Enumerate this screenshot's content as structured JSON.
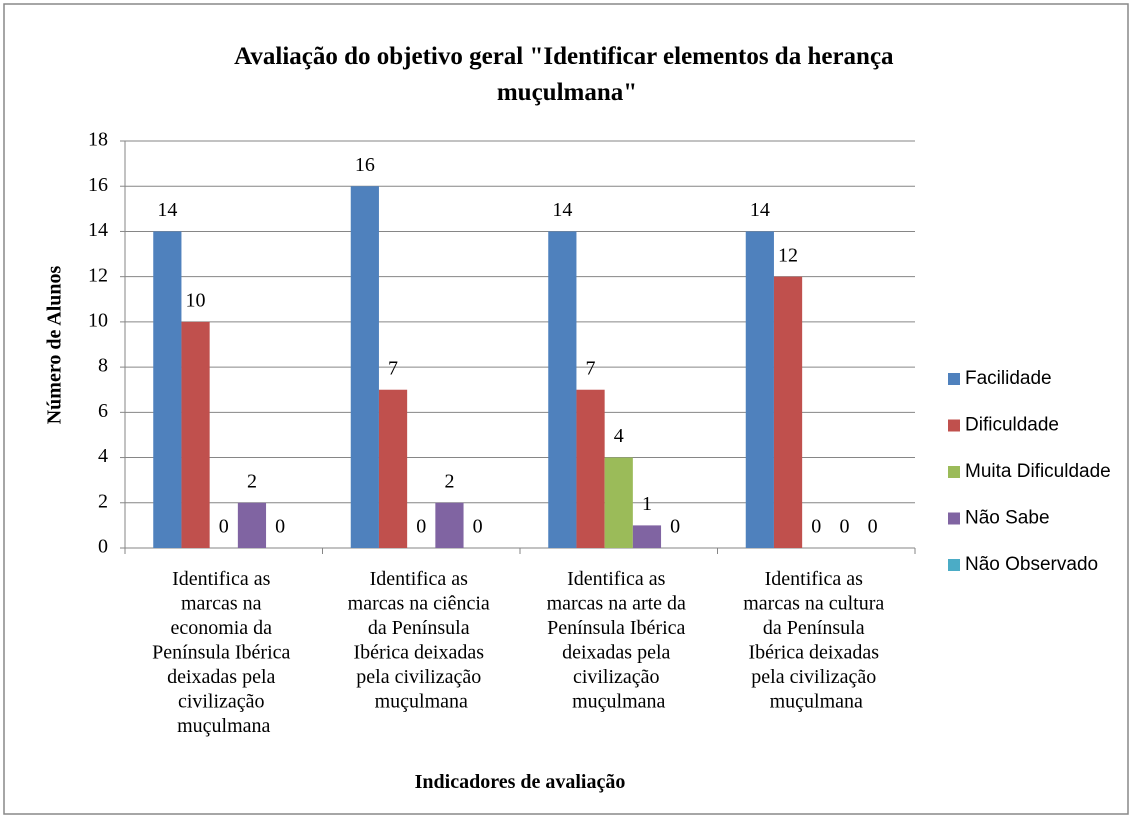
{
  "chart_data": {
    "type": "bar",
    "title": "Avaliação do objetivo geral \"Identificar elementos da herança muçulmana\"",
    "x_label": "Indicadores de avaliação",
    "y_label": "Número de Alunos",
    "categories": [
      "Identifica as marcas na economia da Península Ibérica deixadas pela civilização muçulmana",
      "Identifica as marcas na ciência da Península Ibérica deixadas pela civilização muçulmana",
      "Identifica as marcas na arte da Península Ibérica deixadas pela civilização muçulmana",
      "Identifica as marcas na cultura da Península Ibérica deixadas pela civilização muçulmana"
    ],
    "series": [
      {
        "name": "Facilidade",
        "color": "#4f81bd",
        "values": [
          14,
          16,
          14,
          14
        ]
      },
      {
        "name": "Dificuldade",
        "color": "#c0504d",
        "values": [
          10,
          7,
          7,
          12
        ]
      },
      {
        "name": "Muita Dificuldade",
        "color": "#9bbb59",
        "values": [
          0,
          0,
          4,
          0
        ]
      },
      {
        "name": "Não Sabe",
        "color": "#8064a2",
        "values": [
          2,
          2,
          1,
          0
        ]
      },
      {
        "name": "Não Observado",
        "color": "#4bacc6",
        "values": [
          0,
          0,
          0,
          0
        ]
      }
    ],
    "ylim": [
      0,
      18
    ],
    "yticks": [
      0,
      2,
      4,
      6,
      8,
      10,
      12,
      14,
      16,
      18
    ],
    "grid": true,
    "legend": "right"
  }
}
